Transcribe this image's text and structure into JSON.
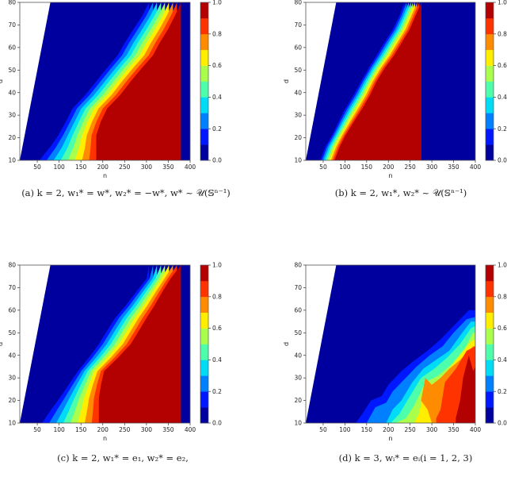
{
  "captions": {
    "a": "(a) k = 2,  w₁* = w*,  w₂* = −w*,  w* ~ 𝒰(𝕊ⁿ⁻¹)",
    "b": "(b) k = 2,  w₁*, w₂* ~ 𝒰(𝕊ⁿ⁻¹)",
    "c": "(c) k = 2,  w₁* = e₁,  w₂* = e₂,",
    "d": "(d) k = 3,  wᵢ* = eᵢ(i = 1, 2, 3)"
  },
  "chart_data": [
    {
      "type": "heatmap",
      "id": "a",
      "title": "(a) k = 2, w1* = w*, w2* = -w*, w* ~ U(S^{n-1})",
      "xlabel": "n",
      "ylabel": "d",
      "xlim": [
        10,
        400
      ],
      "ylim": [
        10,
        80
      ],
      "xticks": [
        50,
        100,
        150,
        200,
        250,
        300,
        350,
        400
      ],
      "yticks": [
        10,
        20,
        30,
        40,
        50,
        60,
        70,
        80
      ],
      "colorbar": {
        "ticks": [
          "0.0",
          "0.2",
          "0.4",
          "0.6",
          "0.8",
          "1.0"
        ],
        "levels": 10,
        "cmap": "jet"
      },
      "undefined_region": "n < d (white)",
      "level_boundaries_low": [
        [
          306,
          80
        ],
        [
          290,
          74
        ],
        [
          270,
          68
        ],
        [
          250,
          62
        ],
        [
          234,
          56.5
        ],
        [
          210,
          51
        ],
        [
          185,
          45
        ],
        [
          160,
          39
        ],
        [
          131,
          33
        ],
        [
          115,
          27
        ],
        [
          98,
          21
        ],
        [
          80,
          16
        ],
        [
          55,
          10
        ]
      ],
      "level_boundaries_high": [
        [
          379,
          80
        ],
        [
          365,
          74
        ],
        [
          349,
          68
        ],
        [
          330,
          62
        ],
        [
          315,
          56.5
        ],
        [
          290,
          51
        ],
        [
          264,
          45
        ],
        [
          240,
          39
        ],
        [
          210,
          33
        ],
        [
          195,
          27
        ],
        [
          185,
          21
        ],
        [
          185,
          15
        ],
        [
          185,
          10
        ]
      ],
      "notes": "Sharp transition from ~0 (dark blue, upper-left) to ~1 (dark red, lower-right); transition roughly along d ≈ 0.28n – 5"
    },
    {
      "type": "heatmap",
      "id": "b",
      "title": "(b) k = 2, w1*, w2* ~ U(S^{n-1})",
      "xlabel": "n",
      "ylabel": "d",
      "xlim": [
        10,
        400
      ],
      "ylim": [
        10,
        80
      ],
      "xticks": [
        50,
        100,
        150,
        200,
        250,
        300,
        350,
        400
      ],
      "yticks": [
        10,
        20,
        30,
        40,
        50,
        60,
        70,
        80
      ],
      "colorbar": {
        "ticks": [
          "0.0",
          "0.2",
          "0.4",
          "0.6",
          "0.8",
          "1.0"
        ],
        "levels": 10,
        "cmap": "jet"
      },
      "undefined_region": "n < d (white)",
      "level_boundaries_low": [
        [
          237,
          80
        ],
        [
          225,
          74
        ],
        [
          210,
          68
        ],
        [
          190,
          62
        ],
        [
          173,
          56.5
        ],
        [
          155,
          51
        ],
        [
          137,
          45
        ],
        [
          120,
          39
        ],
        [
          101,
          33
        ],
        [
          85,
          27
        ],
        [
          70,
          21
        ],
        [
          55,
          16
        ],
        [
          43,
          10
        ]
      ],
      "level_boundaries_high": [
        [
          276,
          80
        ],
        [
          262,
          74
        ],
        [
          249,
          68
        ],
        [
          230,
          62
        ],
        [
          213,
          56.5
        ],
        [
          192,
          51
        ],
        [
          173,
          45
        ],
        [
          158,
          39
        ],
        [
          140,
          33
        ],
        [
          120,
          27
        ],
        [
          101,
          21
        ],
        [
          88,
          16
        ],
        [
          76,
          10
        ]
      ],
      "notes": "Very sharp transition from ~0 to ~1 roughly along d ≈ 0.3n – 2"
    },
    {
      "type": "heatmap",
      "id": "c",
      "title": "(c) k = 2, w1* = e1, w2* = e2",
      "xlabel": "n",
      "ylabel": "d",
      "xlim": [
        10,
        400
      ],
      "ylim": [
        10,
        80
      ],
      "xticks": [
        50,
        100,
        150,
        200,
        250,
        300,
        350,
        400
      ],
      "yticks": [
        10,
        20,
        30,
        40,
        50,
        60,
        70,
        80
      ],
      "colorbar": {
        "ticks": [
          "0.0",
          "0.2",
          "0.4",
          "0.6",
          "0.8",
          "1.0"
        ],
        "levels": 10,
        "cmap": "jet"
      },
      "undefined_region": "n < d (white)",
      "level_boundaries_low": [
        [
          306,
          80
        ],
        [
          300,
          74
        ],
        [
          276,
          68
        ],
        [
          252,
          62
        ],
        [
          228,
          56.5
        ],
        [
          210,
          51
        ],
        [
          191,
          45
        ],
        [
          168,
          39
        ],
        [
          143,
          33
        ],
        [
          122,
          27
        ],
        [
          101,
          21
        ],
        [
          82,
          16
        ],
        [
          61,
          10
        ]
      ],
      "level_boundaries_high": [
        [
          379,
          80
        ],
        [
          355,
          74
        ],
        [
          336,
          68
        ],
        [
          318,
          62
        ],
        [
          300,
          56.5
        ],
        [
          283,
          51
        ],
        [
          264,
          45
        ],
        [
          235,
          39
        ],
        [
          203,
          33
        ],
        [
          196,
          27
        ],
        [
          191,
          21
        ],
        [
          191,
          15
        ],
        [
          191,
          10
        ]
      ],
      "notes": "Transition from ~0 to ~1 roughly along d ≈ 0.28n – 6, slightly wider than (b)"
    },
    {
      "type": "heatmap",
      "id": "d",
      "title": "(d) k = 3, wi* = ei (i = 1, 2, 3)",
      "xlabel": "n",
      "ylabel": "d",
      "xlim": [
        10,
        400
      ],
      "ylim": [
        10,
        80
      ],
      "xticks": [
        50,
        100,
        150,
        200,
        250,
        300,
        350,
        400
      ],
      "yticks": [
        10,
        20,
        30,
        40,
        50,
        60,
        70,
        80
      ],
      "colorbar": {
        "ticks": [
          "0.0",
          "0.2",
          "0.4",
          "0.6",
          "0.8",
          "1.0"
        ],
        "levels": 10,
        "cmap": "jet"
      },
      "undefined_region": "n < d (white)",
      "level_curves": [
        [
          [
            125,
            10
          ],
          [
            140,
            14
          ],
          [
            160,
            20
          ],
          [
            185,
            22
          ],
          [
            200,
            27
          ],
          [
            230,
            33
          ],
          [
            255,
            37
          ],
          [
            290,
            42
          ],
          [
            320,
            47
          ],
          [
            350,
            53
          ],
          [
            385,
            60
          ],
          [
            400,
            60
          ]
        ],
        [
          [
            150,
            10
          ],
          [
            170,
            17
          ],
          [
            195,
            19
          ],
          [
            210,
            24
          ],
          [
            240,
            30
          ],
          [
            265,
            35
          ],
          [
            295,
            40
          ],
          [
            325,
            44
          ],
          [
            350,
            50
          ],
          [
            380,
            56
          ],
          [
            400,
            57
          ]
        ],
        [
          [
            195,
            10
          ],
          [
            210,
            16
          ],
          [
            230,
            20
          ],
          [
            255,
            28
          ],
          [
            280,
            34
          ],
          [
            310,
            38
          ],
          [
            340,
            42
          ],
          [
            370,
            50
          ],
          [
            390,
            55
          ],
          [
            400,
            55
          ]
        ],
        [
          [
            205,
            10
          ],
          [
            225,
            14
          ],
          [
            250,
            22
          ],
          [
            275,
            30
          ],
          [
            305,
            34
          ],
          [
            335,
            39
          ],
          [
            365,
            45
          ],
          [
            390,
            52
          ],
          [
            400,
            53
          ]
        ],
        [
          [
            215,
            10
          ],
          [
            240,
            12
          ],
          [
            260,
            18
          ],
          [
            285,
            28
          ],
          [
            315,
            31
          ],
          [
            345,
            36
          ],
          [
            375,
            43
          ],
          [
            395,
            50
          ],
          [
            400,
            50
          ]
        ],
        [
          [
            260,
            10
          ],
          [
            270,
            14
          ],
          [
            285,
            26
          ],
          [
            310,
            28
          ],
          [
            335,
            33
          ],
          [
            365,
            40
          ],
          [
            390,
            46
          ],
          [
            400,
            47
          ]
        ],
        [
          [
            300,
            10
          ],
          [
            290,
            16
          ],
          [
            275,
            20
          ],
          [
            285,
            30
          ],
          [
            300,
            27
          ],
          [
            320,
            30
          ],
          [
            340,
            34
          ],
          [
            365,
            38
          ],
          [
            395,
            44
          ],
          [
            400,
            44
          ]
        ],
        [
          [
            310,
            12
          ],
          [
            320,
            16
          ],
          [
            330,
            28
          ],
          [
            355,
            34
          ],
          [
            380,
            42
          ],
          [
            400,
            44
          ]
        ],
        [
          [
            355,
            12
          ],
          [
            365,
            20
          ],
          [
            372,
            30
          ],
          [
            385,
            40
          ],
          [
            395,
            33
          ],
          [
            400,
            35
          ]
        ]
      ],
      "notes": "Success probability mostly ~0 (dark blue); rises only in lower-right region, max (~0.9–1.0) near n≈370–400, d≈15–40"
    }
  ],
  "colormap": {
    "bands": [
      "#00009e",
      "#0018ff",
      "#0080ff",
      "#00dcf5",
      "#4dffaa",
      "#aaff4d",
      "#ffee00",
      "#ff8c00",
      "#ff3300",
      "#b30000"
    ],
    "labels": [
      "0.0",
      "0.2",
      "0.4",
      "0.6",
      "0.8",
      "1.0"
    ]
  },
  "axes": {
    "xlabel": "n",
    "ylabel": "d",
    "xtick_labels": [
      "50",
      "100",
      "150",
      "200",
      "250",
      "300",
      "350",
      "400"
    ],
    "ytick_labels": [
      "10",
      "20",
      "30",
      "40",
      "50",
      "60",
      "70",
      "80"
    ]
  }
}
